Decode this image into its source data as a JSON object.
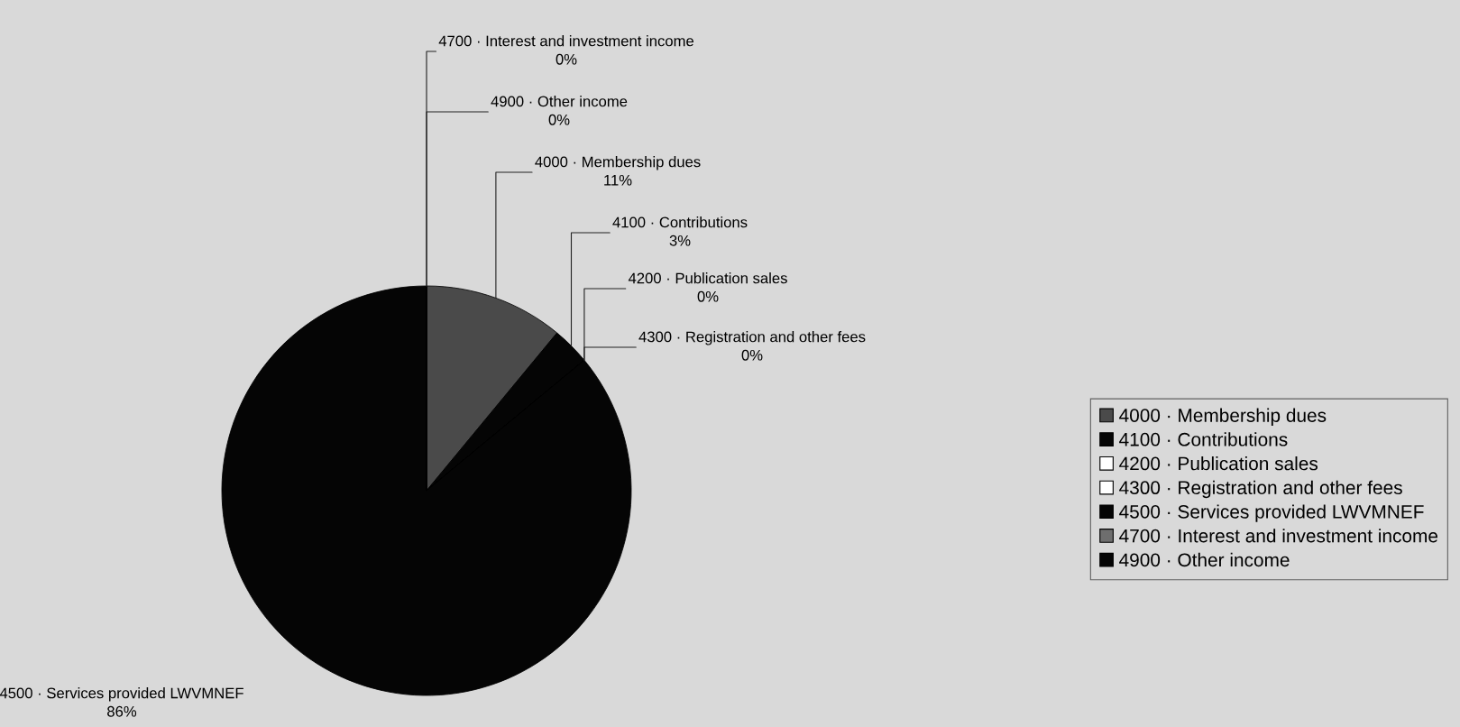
{
  "chart_data": {
    "type": "pie",
    "categories": [
      "4000 · Membership dues",
      "4100 · Contributions",
      "4200 · Publication sales",
      "4300 · Registration and other fees",
      "4500 · Services provided LWVMNEF",
      "4700 · Interest and investment income",
      "4900 · Other income"
    ],
    "values": [
      11,
      3,
      0,
      0,
      86,
      0,
      0
    ],
    "value_labels": [
      "11%",
      "3%",
      "0%",
      "0%",
      "86%",
      "0%",
      "0%"
    ],
    "colors": [
      "#4a4a4a",
      "#050505",
      "#ffffff",
      "#ffffff",
      "#050505",
      "#6e6e6e",
      "#050505"
    ],
    "legend": "right"
  }
}
